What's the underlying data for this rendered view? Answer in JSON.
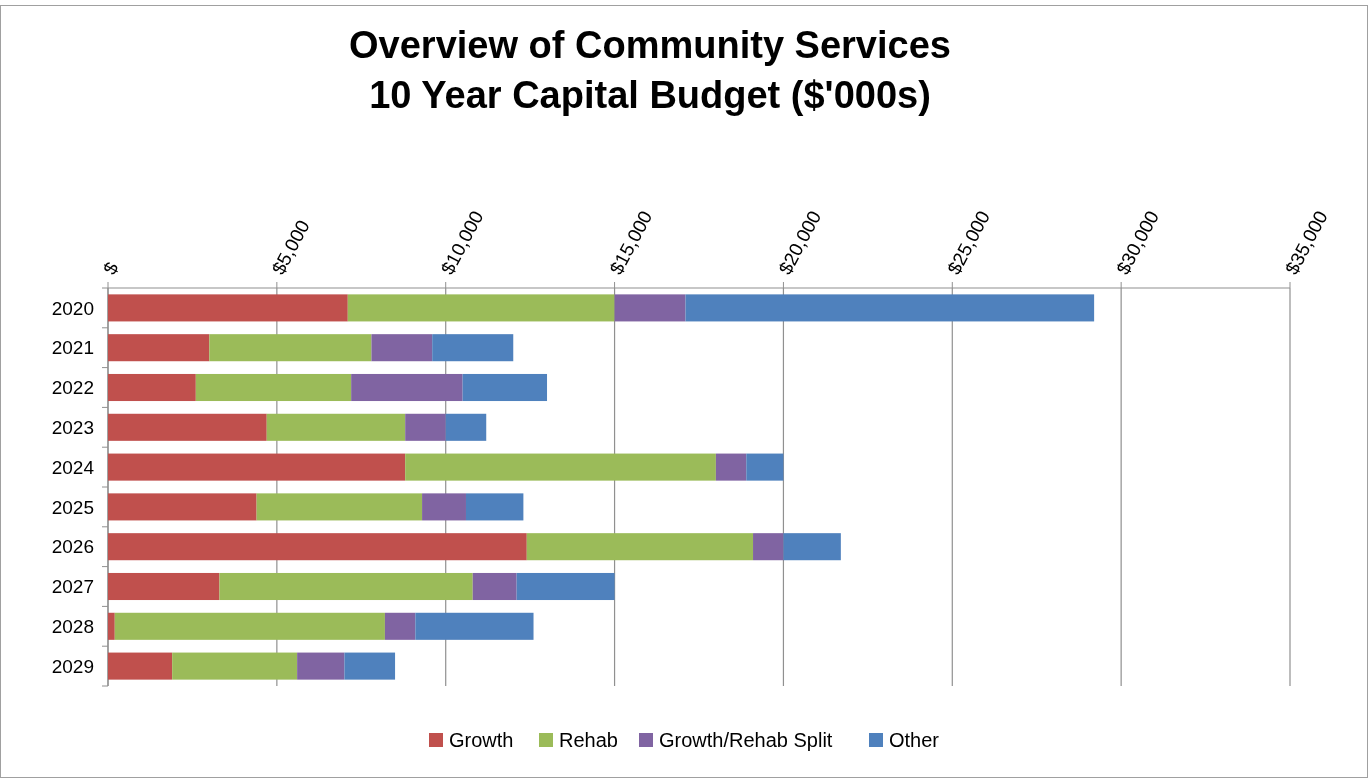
{
  "chart_data": {
    "type": "bar",
    "orientation": "horizontal",
    "stacked": true,
    "title": "Overview of Community Services\n10 Year Capital Budget ($'000s)",
    "categories": [
      "2020",
      "2021",
      "2022",
      "2023",
      "2024",
      "2025",
      "2026",
      "2027",
      "2028",
      "2029"
    ],
    "series": [
      {
        "name": "Growth",
        "color": "#c0504d",
        "values": [
          7100,
          3000,
          2600,
          4700,
          8800,
          4400,
          12400,
          3300,
          200,
          1900
        ]
      },
      {
        "name": "Rehab",
        "color": "#9bbb59",
        "values": [
          7900,
          4800,
          4600,
          4100,
          9200,
          4900,
          6700,
          7500,
          8000,
          3700
        ]
      },
      {
        "name": "Growth/Rehab Split",
        "color": "#8064a2",
        "values": [
          2100,
          1800,
          3300,
          1200,
          900,
          1300,
          900,
          1300,
          900,
          1400
        ]
      },
      {
        "name": "Other",
        "color": "#4f81bd",
        "values": [
          12100,
          2400,
          2500,
          1200,
          1100,
          1700,
          1700,
          2900,
          3500,
          1500
        ]
      }
    ],
    "xlim": [
      0,
      35000
    ],
    "xticks": [
      {
        "value": 0,
        "label": "$"
      },
      {
        "value": 5000,
        "label": "$5,000"
      },
      {
        "value": 10000,
        "label": "$10,000"
      },
      {
        "value": 15000,
        "label": "$15,000"
      },
      {
        "value": 20000,
        "label": "$20,000"
      },
      {
        "value": 25000,
        "label": "$25,000"
      },
      {
        "value": 30000,
        "label": "$30,000"
      },
      {
        "value": 35000,
        "label": "$35,000"
      }
    ],
    "grid": "x",
    "legend": "bottom"
  }
}
